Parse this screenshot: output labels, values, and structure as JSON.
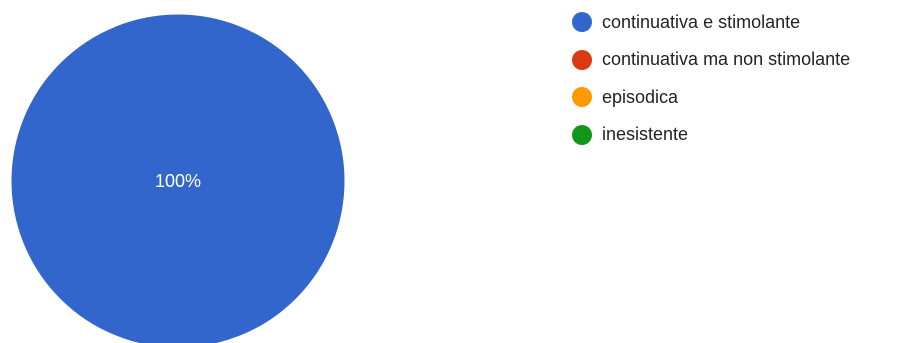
{
  "chart_data": {
    "type": "pie",
    "categories": [
      "continuativa e stimolante",
      "continuativa ma non stimolante",
      "episodica",
      "inesistente"
    ],
    "values": [
      100,
      0,
      0,
      0
    ],
    "slice_labels": [
      "100%",
      "",
      "",
      ""
    ],
    "colors": [
      "#3366cc",
      "#dc3912",
      "#ff9900",
      "#109618"
    ],
    "legend_position": "right"
  }
}
